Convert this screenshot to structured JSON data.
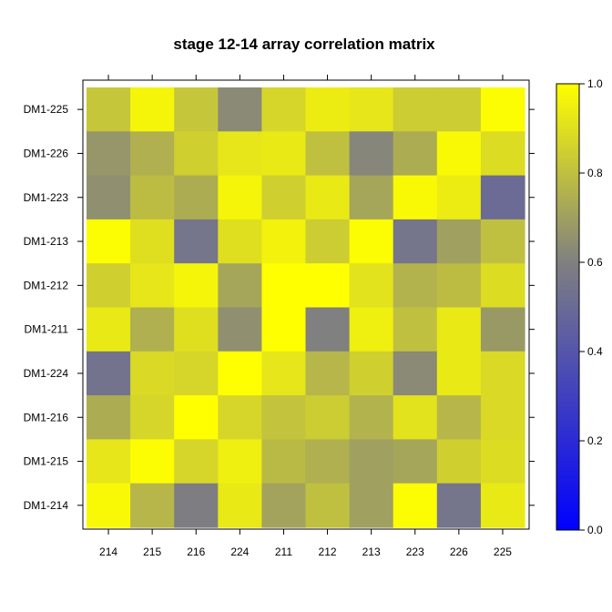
{
  "chart_data": {
    "type": "heatmap",
    "title": "stage 12-14 array correlation matrix",
    "x_categories": [
      "214",
      "215",
      "216",
      "224",
      "211",
      "212",
      "213",
      "223",
      "226",
      "225"
    ],
    "y_categories": [
      "DM1-225",
      "DM1-226",
      "DM1-223",
      "DM1-213",
      "DM1-212",
      "DM1-211",
      "DM1-224",
      "DM1-216",
      "DM1-215",
      "DM1-214"
    ],
    "values": [
      [
        0.82,
        0.97,
        0.82,
        0.63,
        0.87,
        0.94,
        0.92,
        0.84,
        0.84,
        0.99
      ],
      [
        0.67,
        0.75,
        0.85,
        0.92,
        0.93,
        0.8,
        0.62,
        0.74,
        0.98,
        0.89
      ],
      [
        0.65,
        0.79,
        0.74,
        0.97,
        0.85,
        0.93,
        0.72,
        0.98,
        0.94,
        0.5
      ],
      [
        0.99,
        0.9,
        0.55,
        0.9,
        0.96,
        0.84,
        0.99,
        0.55,
        0.7,
        0.8
      ],
      [
        0.85,
        0.92,
        0.97,
        0.72,
        1.0,
        1.0,
        0.91,
        0.76,
        0.79,
        0.89
      ],
      [
        0.93,
        0.75,
        0.9,
        0.65,
        1.0,
        0.6,
        0.95,
        0.8,
        0.93,
        0.68
      ],
      [
        0.54,
        0.88,
        0.87,
        1.0,
        0.92,
        0.77,
        0.85,
        0.63,
        0.93,
        0.88
      ],
      [
        0.74,
        0.87,
        1.0,
        0.87,
        0.81,
        0.84,
        0.76,
        0.91,
        0.77,
        0.88
      ],
      [
        0.92,
        0.99,
        0.87,
        0.95,
        0.78,
        0.75,
        0.7,
        0.72,
        0.85,
        0.89
      ],
      [
        0.98,
        0.77,
        0.59,
        0.93,
        0.71,
        0.8,
        0.7,
        0.99,
        0.55,
        0.93
      ]
    ],
    "colorbar": {
      "range": [
        0.0,
        1.0
      ],
      "ticks": [
        "0.0",
        "0.2",
        "0.4",
        "0.6",
        "0.8",
        "1.0"
      ],
      "colors": [
        "#0000ff",
        "#808080",
        "#ffff00"
      ]
    }
  }
}
